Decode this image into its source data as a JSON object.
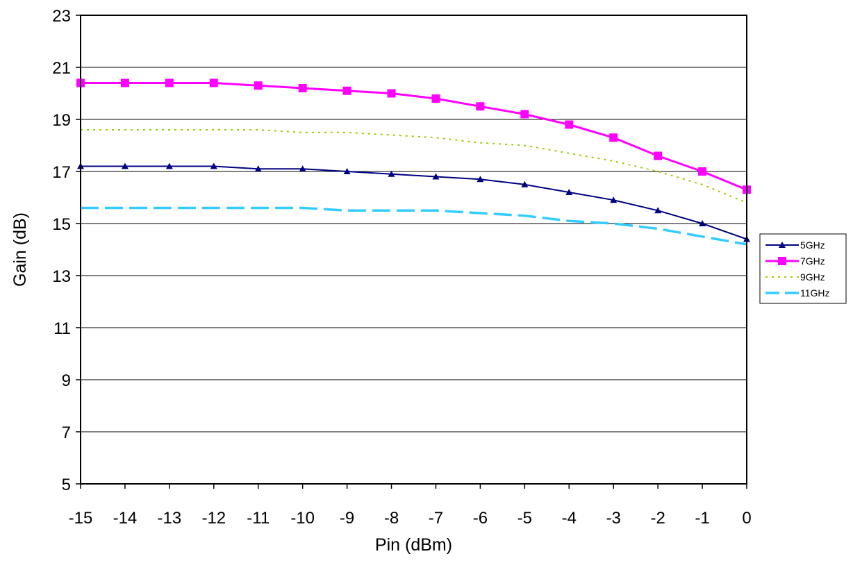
{
  "chart_data": {
    "type": "line",
    "title": "",
    "xlabel": "Pin (dBm)",
    "ylabel": "Gain (dB)",
    "xlim": [
      -15,
      0
    ],
    "ylim": [
      5,
      23
    ],
    "xticks": [
      -15,
      -14,
      -13,
      -12,
      -11,
      -10,
      -9,
      -8,
      -7,
      -6,
      -5,
      -4,
      -3,
      -2,
      -1,
      0
    ],
    "yticks": [
      5,
      7,
      9,
      11,
      13,
      15,
      17,
      19,
      21,
      23
    ],
    "grid": "horizontal",
    "legend_position": "right",
    "x": [
      -15,
      -14,
      -13,
      -12,
      -11,
      -10,
      -9,
      -8,
      -7,
      -6,
      -5,
      -4,
      -3,
      -2,
      -1,
      0
    ],
    "series": [
      {
        "name": "5GHz",
        "color": "#000080",
        "style": "solid",
        "marker": "triangle",
        "values": [
          17.2,
          17.2,
          17.2,
          17.2,
          17.1,
          17.1,
          17.0,
          16.9,
          16.8,
          16.7,
          16.5,
          16.2,
          15.9,
          15.5,
          15.0,
          14.4
        ]
      },
      {
        "name": "7GHz",
        "color": "#ff00ff",
        "style": "solid",
        "marker": "square",
        "values": [
          20.4,
          20.4,
          20.4,
          20.4,
          20.3,
          20.2,
          20.1,
          20.0,
          19.8,
          19.5,
          19.2,
          18.8,
          18.3,
          17.6,
          17.0,
          16.3
        ]
      },
      {
        "name": "9GHz",
        "color": "#99cc00",
        "style": "dotted",
        "marker": "none",
        "values": [
          18.6,
          18.6,
          18.6,
          18.6,
          18.6,
          18.5,
          18.5,
          18.4,
          18.3,
          18.1,
          18.0,
          17.7,
          17.4,
          17.0,
          16.5,
          15.8
        ]
      },
      {
        "name": "11GHz",
        "color": "#33ccff",
        "style": "dashed",
        "marker": "none",
        "values": [
          15.6,
          15.6,
          15.6,
          15.6,
          15.6,
          15.6,
          15.5,
          15.5,
          15.5,
          15.4,
          15.3,
          15.1,
          15.0,
          14.8,
          14.5,
          14.2
        ]
      }
    ]
  }
}
